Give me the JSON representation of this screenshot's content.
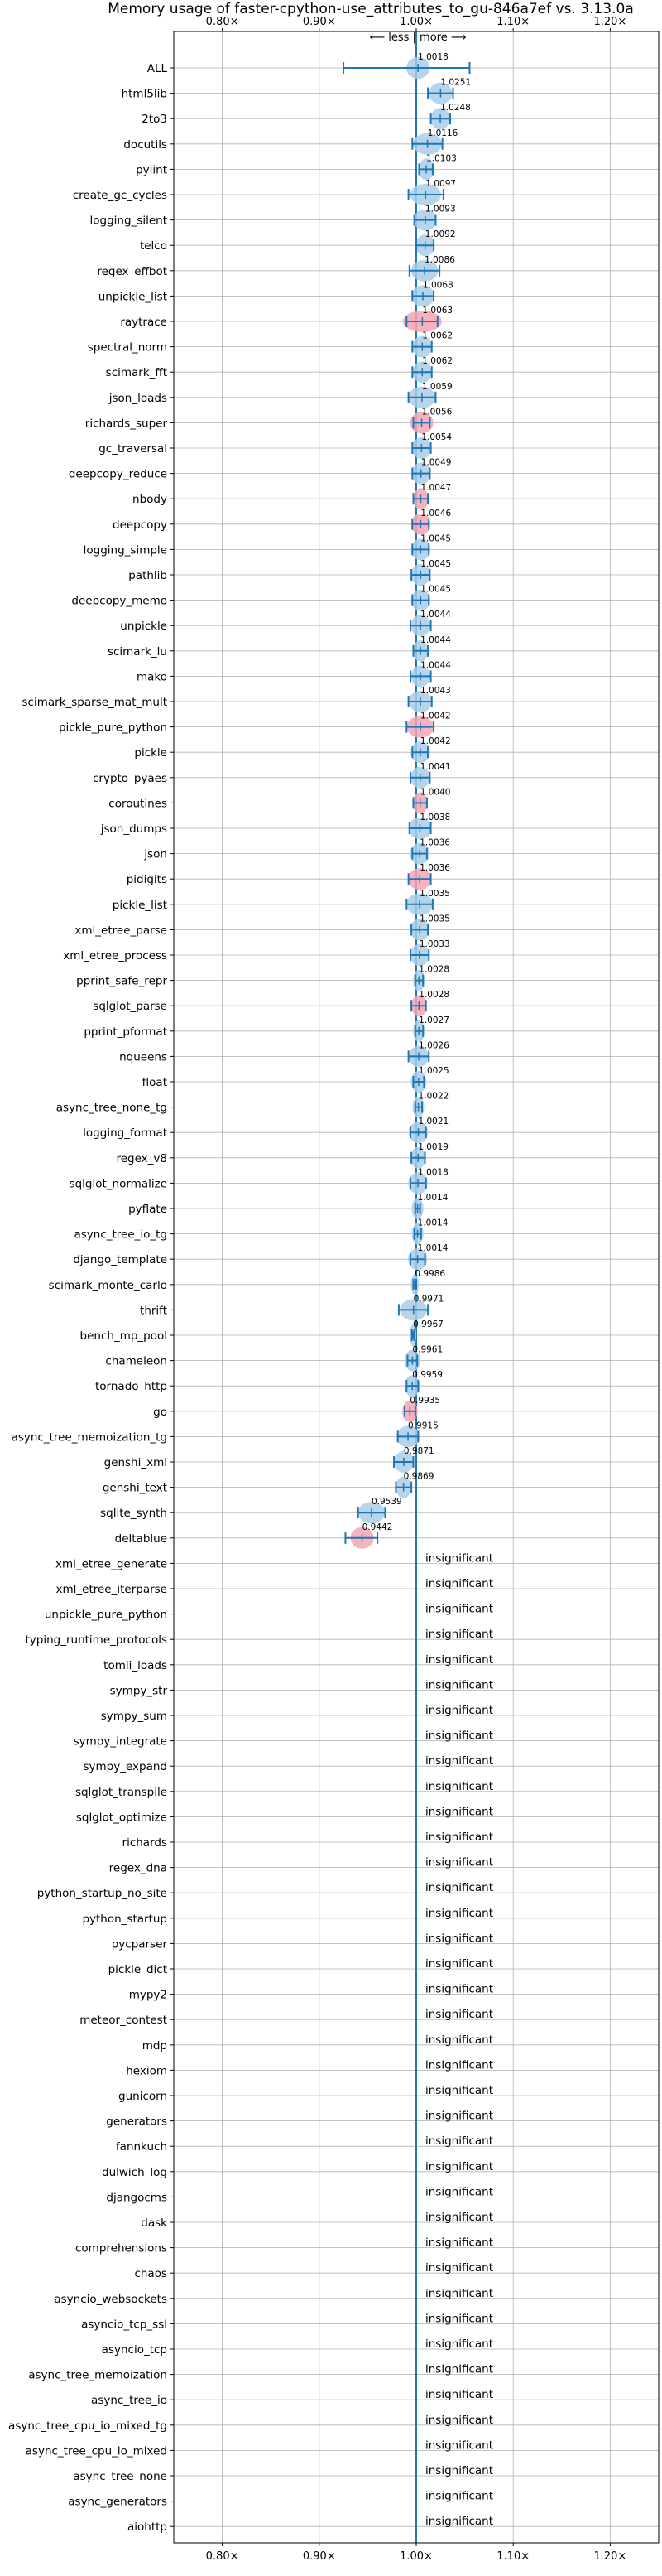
{
  "chart_data": {
    "type": "scatter",
    "title": "Memory usage of faster-cpython-use_attributes_to_gu-846a7ef vs. 3.13.0a",
    "direction_label": "⟵ less | more ⟶",
    "x_ticks": [
      "0.80×",
      "0.90×",
      "1.00×",
      "1.10×",
      "1.20×"
    ],
    "x_tick_values": [
      0.8,
      0.9,
      1.0,
      1.1,
      1.2
    ],
    "xlim": [
      0.75,
      1.25
    ],
    "grid": true,
    "colors": {
      "line": "#1f77b4",
      "fill": "#a9cde8",
      "highlight": "#f4a6b4"
    },
    "insignificant_label": "insignificant",
    "benchmarks": [
      {
        "name": "ALL",
        "value": 1.0018,
        "label": "1.0018",
        "lo": 0.925,
        "hi": 1.055,
        "w": 0.012,
        "hl": false
      },
      {
        "name": "html5lib",
        "value": 1.0251,
        "label": "1.0251",
        "lo": 1.012,
        "hi": 1.038,
        "w": 0.012,
        "hl": false
      },
      {
        "name": "2to3",
        "value": 1.0248,
        "label": "1.0248",
        "lo": 1.015,
        "hi": 1.035,
        "w": 0.01,
        "hl": false
      },
      {
        "name": "docutils",
        "value": 1.0116,
        "label": "1.0116",
        "lo": 0.996,
        "hi": 1.027,
        "w": 0.015,
        "hl": false
      },
      {
        "name": "pylint",
        "value": 1.0103,
        "label": "1.0103",
        "lo": 1.003,
        "hi": 1.017,
        "w": 0.008,
        "hl": false
      },
      {
        "name": "create_gc_cycles",
        "value": 1.0097,
        "label": "1.0097",
        "lo": 0.992,
        "hi": 1.028,
        "w": 0.016,
        "hl": false
      },
      {
        "name": "logging_silent",
        "value": 1.0093,
        "label": "1.0093",
        "lo": 0.998,
        "hi": 1.02,
        "w": 0.012,
        "hl": false
      },
      {
        "name": "telco",
        "value": 1.0092,
        "label": "1.0092",
        "lo": 1.0,
        "hi": 1.018,
        "w": 0.01,
        "hl": false
      },
      {
        "name": "regex_effbot",
        "value": 1.0086,
        "label": "1.0086",
        "lo": 0.993,
        "hi": 1.024,
        "w": 0.014,
        "hl": false
      },
      {
        "name": "unpickle_list",
        "value": 1.0068,
        "label": "1.0068",
        "lo": 0.996,
        "hi": 1.018,
        "w": 0.012,
        "hl": false
      },
      {
        "name": "raytrace",
        "value": 1.0063,
        "label": "1.0063",
        "lo": 0.99,
        "hi": 1.022,
        "w": 0.02,
        "hl": true
      },
      {
        "name": "spectral_norm",
        "value": 1.0062,
        "label": "1.0062",
        "lo": 0.996,
        "hi": 1.016,
        "w": 0.01,
        "hl": false
      },
      {
        "name": "scimark_fft",
        "value": 1.0062,
        "label": "1.0062",
        "lo": 0.996,
        "hi": 1.016,
        "w": 0.01,
        "hl": false
      },
      {
        "name": "json_loads",
        "value": 1.0059,
        "label": "1.0059",
        "lo": 0.992,
        "hi": 1.02,
        "w": 0.014,
        "hl": false
      },
      {
        "name": "richards_super",
        "value": 1.0056,
        "label": "1.0056",
        "lo": 0.997,
        "hi": 1.014,
        "w": 0.012,
        "hl": true
      },
      {
        "name": "gc_traversal",
        "value": 1.0054,
        "label": "1.0054",
        "lo": 0.996,
        "hi": 1.015,
        "w": 0.01,
        "hl": false
      },
      {
        "name": "deepcopy_reduce",
        "value": 1.0049,
        "label": "1.0049",
        "lo": 0.996,
        "hi": 1.014,
        "w": 0.01,
        "hl": false
      },
      {
        "name": "nbody",
        "value": 1.0047,
        "label": "1.0047",
        "lo": 0.997,
        "hi": 1.012,
        "w": 0.008,
        "hl": true
      },
      {
        "name": "deepcopy",
        "value": 1.0046,
        "label": "1.0046",
        "lo": 0.996,
        "hi": 1.013,
        "w": 0.01,
        "hl": true
      },
      {
        "name": "logging_simple",
        "value": 1.0045,
        "label": "1.0045",
        "lo": 0.996,
        "hi": 1.013,
        "w": 0.01,
        "hl": false
      },
      {
        "name": "pathlib",
        "value": 1.0045,
        "label": "1.0045",
        "lo": 0.995,
        "hi": 1.014,
        "w": 0.01,
        "hl": false
      },
      {
        "name": "deepcopy_memo",
        "value": 1.0045,
        "label": "1.0045",
        "lo": 0.996,
        "hi": 1.013,
        "w": 0.01,
        "hl": false
      },
      {
        "name": "unpickle",
        "value": 1.0044,
        "label": "1.0044",
        "lo": 0.994,
        "hi": 1.015,
        "w": 0.01,
        "hl": false
      },
      {
        "name": "scimark_lu",
        "value": 1.0044,
        "label": "1.0044",
        "lo": 0.997,
        "hi": 1.012,
        "w": 0.008,
        "hl": false
      },
      {
        "name": "mako",
        "value": 1.0044,
        "label": "1.0044",
        "lo": 0.994,
        "hi": 1.015,
        "w": 0.01,
        "hl": false
      },
      {
        "name": "scimark_sparse_mat_mult",
        "value": 1.0043,
        "label": "1.0043",
        "lo": 0.992,
        "hi": 1.016,
        "w": 0.012,
        "hl": false
      },
      {
        "name": "pickle_pure_python",
        "value": 1.0042,
        "label": "1.0042",
        "lo": 0.99,
        "hi": 1.018,
        "w": 0.014,
        "hl": true
      },
      {
        "name": "pickle",
        "value": 1.0042,
        "label": "1.0042",
        "lo": 0.996,
        "hi": 1.012,
        "w": 0.01,
        "hl": false
      },
      {
        "name": "crypto_pyaes",
        "value": 1.0041,
        "label": "1.0041",
        "lo": 0.994,
        "hi": 1.014,
        "w": 0.01,
        "hl": false
      },
      {
        "name": "coroutines",
        "value": 1.004,
        "label": "1.0040",
        "lo": 0.997,
        "hi": 1.011,
        "w": 0.008,
        "hl": true
      },
      {
        "name": "json_dumps",
        "value": 1.0038,
        "label": "1.0038",
        "lo": 0.993,
        "hi": 1.015,
        "w": 0.012,
        "hl": false
      },
      {
        "name": "json",
        "value": 1.0036,
        "label": "1.0036",
        "lo": 0.996,
        "hi": 1.011,
        "w": 0.01,
        "hl": false
      },
      {
        "name": "pidigits",
        "value": 1.0036,
        "label": "1.0036",
        "lo": 0.992,
        "hi": 1.015,
        "w": 0.012,
        "hl": true
      },
      {
        "name": "pickle_list",
        "value": 1.0035,
        "label": "1.0035",
        "lo": 0.99,
        "hi": 1.017,
        "w": 0.014,
        "hl": false
      },
      {
        "name": "xml_etree_parse",
        "value": 1.0035,
        "label": "1.0035",
        "lo": 0.995,
        "hi": 1.012,
        "w": 0.01,
        "hl": false
      },
      {
        "name": "xml_etree_process",
        "value": 1.0033,
        "label": "1.0033",
        "lo": 0.994,
        "hi": 1.013,
        "w": 0.01,
        "hl": false
      },
      {
        "name": "pprint_safe_repr",
        "value": 1.0028,
        "label": "1.0028",
        "lo": 0.999,
        "hi": 1.007,
        "w": 0.006,
        "hl": false
      },
      {
        "name": "sqlglot_parse",
        "value": 1.0028,
        "label": "1.0028",
        "lo": 0.995,
        "hi": 1.01,
        "w": 0.008,
        "hl": true
      },
      {
        "name": "pprint_pformat",
        "value": 1.0027,
        "label": "1.0027",
        "lo": 0.999,
        "hi": 1.007,
        "w": 0.006,
        "hl": false
      },
      {
        "name": "nqueens",
        "value": 1.0026,
        "label": "1.0026",
        "lo": 0.992,
        "hi": 1.013,
        "w": 0.01,
        "hl": false
      },
      {
        "name": "float",
        "value": 1.0025,
        "label": "1.0025",
        "lo": 0.997,
        "hi": 1.008,
        "w": 0.008,
        "hl": false
      },
      {
        "name": "async_tree_none_tg",
        "value": 1.0022,
        "label": "1.0022",
        "lo": 0.999,
        "hi": 1.006,
        "w": 0.006,
        "hl": false
      },
      {
        "name": "logging_format",
        "value": 1.0021,
        "label": "1.0021",
        "lo": 0.994,
        "hi": 1.01,
        "w": 0.01,
        "hl": false
      },
      {
        "name": "regex_v8",
        "value": 1.0019,
        "label": "1.0019",
        "lo": 0.995,
        "hi": 1.009,
        "w": 0.008,
        "hl": false
      },
      {
        "name": "sqlglot_normalize",
        "value": 1.0018,
        "label": "1.0018",
        "lo": 0.994,
        "hi": 1.01,
        "w": 0.01,
        "hl": false
      },
      {
        "name": "pyflate",
        "value": 1.0014,
        "label": "1.0014",
        "lo": 0.999,
        "hi": 1.004,
        "w": 0.006,
        "hl": false
      },
      {
        "name": "async_tree_io_tg",
        "value": 1.0014,
        "label": "1.0014",
        "lo": 0.998,
        "hi": 1.005,
        "w": 0.006,
        "hl": false
      },
      {
        "name": "django_template",
        "value": 1.0014,
        "label": "1.0014",
        "lo": 0.994,
        "hi": 1.009,
        "w": 0.01,
        "hl": false
      },
      {
        "name": "scimark_monte_carlo",
        "value": 0.9986,
        "label": "0.9986",
        "lo": 0.997,
        "hi": 1.0,
        "w": 0.004,
        "hl": false
      },
      {
        "name": "thrift",
        "value": 0.9971,
        "label": "0.9971",
        "lo": 0.982,
        "hi": 1.012,
        "w": 0.014,
        "hl": false
      },
      {
        "name": "bench_mp_pool",
        "value": 0.9967,
        "label": "0.9967",
        "lo": 0.9955,
        "hi": 0.998,
        "w": 0.003,
        "hl": false
      },
      {
        "name": "chameleon",
        "value": 0.9961,
        "label": "0.9961",
        "lo": 0.991,
        "hi": 1.001,
        "w": 0.008,
        "hl": false
      },
      {
        "name": "tornado_http",
        "value": 0.9959,
        "label": "0.9959",
        "lo": 0.99,
        "hi": 1.002,
        "w": 0.008,
        "hl": false
      },
      {
        "name": "go",
        "value": 0.9935,
        "label": "0.9935",
        "lo": 0.988,
        "hi": 0.999,
        "w": 0.008,
        "hl": true
      },
      {
        "name": "async_tree_memoization_tg",
        "value": 0.9915,
        "label": "0.9915",
        "lo": 0.981,
        "hi": 1.002,
        "w": 0.012,
        "hl": false
      },
      {
        "name": "genshi_xml",
        "value": 0.9871,
        "label": "0.9871",
        "lo": 0.977,
        "hi": 0.997,
        "w": 0.01,
        "hl": false
      },
      {
        "name": "genshi_text",
        "value": 0.9869,
        "label": "0.9869",
        "lo": 0.979,
        "hi": 0.995,
        "w": 0.008,
        "hl": false
      },
      {
        "name": "sqlite_synth",
        "value": 0.9539,
        "label": "0.9539",
        "lo": 0.94,
        "hi": 0.968,
        "w": 0.014,
        "hl": false
      },
      {
        "name": "deltablue",
        "value": 0.9442,
        "label": "0.9442",
        "lo": 0.927,
        "hi": 0.96,
        "w": 0.012,
        "hl": true
      }
    ],
    "insignificant": [
      "xml_etree_generate",
      "xml_etree_iterparse",
      "unpickle_pure_python",
      "typing_runtime_protocols",
      "tomli_loads",
      "sympy_str",
      "sympy_sum",
      "sympy_integrate",
      "sympy_expand",
      "sqlglot_transpile",
      "sqlglot_optimize",
      "richards",
      "regex_dna",
      "python_startup_no_site",
      "python_startup",
      "pycparser",
      "pickle_dict",
      "mypy2",
      "meteor_contest",
      "mdp",
      "hexiom",
      "gunicorn",
      "generators",
      "fannkuch",
      "dulwich_log",
      "djangocms",
      "dask",
      "comprehensions",
      "chaos",
      "asyncio_websockets",
      "asyncio_tcp_ssl",
      "asyncio_tcp",
      "async_tree_memoization",
      "async_tree_io",
      "async_tree_cpu_io_mixed_tg",
      "async_tree_cpu_io_mixed",
      "async_tree_none",
      "async_generators",
      "aiohttp"
    ]
  }
}
